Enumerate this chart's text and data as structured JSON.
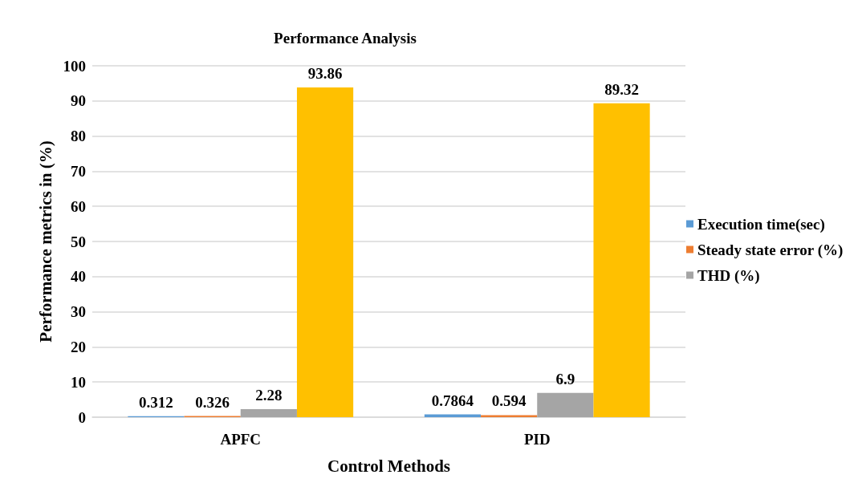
{
  "chart_data": {
    "type": "bar",
    "title": "Performance Analysis",
    "xlabel": "Control Methods",
    "ylabel": "Performance metrics in (%)",
    "categories": [
      "APFC",
      "PID"
    ],
    "series": [
      {
        "name": "Execution time(sec)",
        "color": "#5b9bd5",
        "values": [
          0.312,
          0.7864
        ]
      },
      {
        "name": "Steady state error (%)",
        "color": "#ed7d31",
        "values": [
          0.326,
          0.594
        ]
      },
      {
        "name": "THD (%)",
        "color": "#a5a5a5",
        "values": [
          2.28,
          6.9
        ]
      },
      {
        "color": "#ffc000",
        "values": [
          93.86,
          89.32
        ]
      }
    ],
    "ylim": [
      0,
      100
    ],
    "yticks": [
      0,
      10,
      20,
      30,
      40,
      50,
      60,
      70,
      80,
      90,
      100
    ],
    "grid": "y",
    "legend": "right",
    "data_labels": true
  }
}
